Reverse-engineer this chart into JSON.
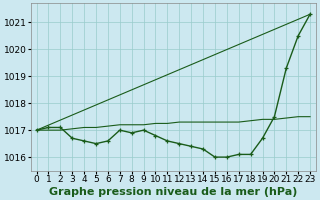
{
  "title": "Graphe pression niveau de la mer (hPa)",
  "background_color": "#cce8f0",
  "grid_color": "#99cccc",
  "line_color": "#1a5c1a",
  "xlim_min": -0.5,
  "xlim_max": 23.5,
  "ylim_min": 1015.5,
  "ylim_max": 1021.7,
  "yticks": [
    1016,
    1017,
    1018,
    1019,
    1020,
    1021
  ],
  "xticks": [
    0,
    1,
    2,
    3,
    4,
    5,
    6,
    7,
    8,
    9,
    10,
    11,
    12,
    13,
    14,
    15,
    16,
    17,
    18,
    19,
    20,
    21,
    22,
    23
  ],
  "series": [
    {
      "x": [
        0,
        1,
        2,
        3,
        4,
        5,
        6,
        7,
        8,
        9,
        10,
        11,
        12,
        13,
        14,
        15,
        16,
        17,
        18,
        19,
        20,
        21,
        22,
        23
      ],
      "y": [
        1017.0,
        1017.1,
        1017.1,
        1016.7,
        1016.6,
        1016.5,
        1016.6,
        1017.0,
        1016.9,
        1017.0,
        1016.8,
        1016.6,
        1016.5,
        1016.4,
        1016.3,
        1016.0,
        1016.0,
        1016.1,
        1016.1,
        1016.7,
        1017.5,
        1019.3,
        1020.5,
        1021.3
      ],
      "marker": "+",
      "linewidth": 1.0,
      "markersize": 3.5
    },
    {
      "x": [
        0,
        23
      ],
      "y": [
        1017.0,
        1021.3
      ],
      "marker": null,
      "linewidth": 0.8,
      "markersize": 0
    },
    {
      "x": [
        0,
        1,
        2,
        3,
        4,
        5,
        6,
        7,
        8,
        9,
        10,
        11,
        12,
        13,
        14,
        15,
        16,
        17,
        18,
        19,
        20,
        21,
        22,
        23
      ],
      "y": [
        1017.0,
        1017.0,
        1017.0,
        1017.05,
        1017.1,
        1017.1,
        1017.15,
        1017.2,
        1017.2,
        1017.2,
        1017.25,
        1017.25,
        1017.3,
        1017.3,
        1017.3,
        1017.3,
        1017.3,
        1017.3,
        1017.35,
        1017.4,
        1017.4,
        1017.45,
        1017.5,
        1017.5
      ],
      "marker": null,
      "linewidth": 0.8,
      "markersize": 0
    }
  ],
  "title_fontsize": 8,
  "tick_fontsize": 6.5
}
